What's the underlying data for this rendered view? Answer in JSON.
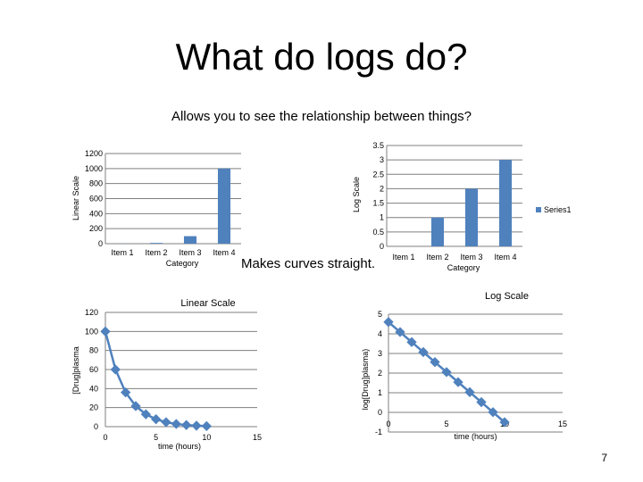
{
  "slide": {
    "title": "What do logs do?",
    "subtitle": "Allows you to see the relationship between things?",
    "middle_text": "Makes curves straight.",
    "page_number": "7"
  },
  "colors": {
    "series": "#4f81bd",
    "grid": "#7f7f7f"
  },
  "chart_data": [
    {
      "type": "bar",
      "title": "",
      "xlabel": "Category",
      "ylabel": "Linear Scale",
      "categories": [
        "Item 1",
        "Item 2",
        "Item 3",
        "Item 4"
      ],
      "values": [
        1,
        10,
        100,
        1000
      ],
      "ylim": [
        0,
        1200
      ],
      "yticks": [
        0,
        200,
        400,
        600,
        800,
        1000,
        1200
      ],
      "grid": true,
      "legend": null
    },
    {
      "type": "bar",
      "title": "",
      "xlabel": "Category",
      "ylabel": "Log Scale",
      "categories": [
        "Item 1",
        "Item 2",
        "Item 3",
        "Item 4"
      ],
      "series": [
        {
          "name": "Series1",
          "values": [
            0,
            1,
            2,
            3
          ]
        }
      ],
      "ylim": [
        0,
        3.5
      ],
      "yticks": [
        0,
        0.5,
        1,
        1.5,
        2,
        2.5,
        3,
        3.5
      ],
      "grid": true,
      "legend": "right"
    },
    {
      "type": "line",
      "title": "Linear Scale",
      "xlabel": "time (hours)",
      "ylabel": "[Drug]plasma",
      "x": [
        0,
        1,
        2,
        3,
        4,
        5,
        6,
        7,
        8,
        9,
        10
      ],
      "y": [
        100,
        60,
        36,
        21.6,
        13,
        7.8,
        4.7,
        2.8,
        1.7,
        1.0,
        0.6
      ],
      "xlim": [
        0,
        15
      ],
      "xticks": [
        0,
        5,
        10,
        15
      ],
      "ylim": [
        0,
        120
      ],
      "yticks": [
        0,
        20,
        40,
        60,
        80,
        100,
        120
      ],
      "grid": true,
      "legend": null
    },
    {
      "type": "line",
      "title": "Log Scale",
      "xlabel": "time (hours)",
      "ylabel": "log[Drug]plasma)",
      "x": [
        0,
        1,
        2,
        3,
        4,
        5,
        6,
        7,
        8,
        9,
        10
      ],
      "y": [
        4.6,
        4.09,
        3.58,
        3.07,
        2.56,
        2.05,
        1.54,
        1.03,
        0.52,
        0.01,
        -0.5
      ],
      "xlim": [
        0,
        15
      ],
      "xticks": [
        0,
        5,
        10,
        15
      ],
      "ylim": [
        -1,
        5
      ],
      "yticks": [
        -1,
        0,
        1,
        2,
        3,
        4,
        5
      ],
      "grid": true,
      "legend": null
    }
  ]
}
